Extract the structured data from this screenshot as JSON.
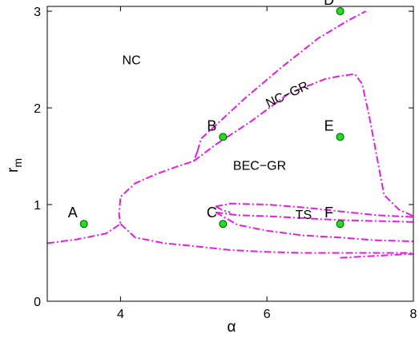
{
  "chart_data": {
    "type": "scatter",
    "xlabel": "α",
    "ylabel": "r",
    "ylabel_sub": "m",
    "xlim": [
      3,
      8
    ],
    "ylim": [
      0,
      3.05
    ],
    "xticks": [
      {
        "value": 4,
        "label": "4"
      },
      {
        "value": 6,
        "label": "6"
      },
      {
        "value": 8,
        "label": "8"
      }
    ],
    "yticks": [
      {
        "value": 0,
        "label": "0"
      },
      {
        "value": 1,
        "label": "1"
      },
      {
        "value": 2,
        "label": "2"
      },
      {
        "value": 3,
        "label": "3"
      }
    ],
    "grid": false,
    "colors": {
      "boundary": "#e31ee3",
      "marker_fill": "#22dd22",
      "marker_edge": "#005500",
      "axis": "#000000"
    },
    "points": [
      {
        "label": "A",
        "x": 3.5,
        "y": 0.8
      },
      {
        "label": "B",
        "x": 5.4,
        "y": 1.7
      },
      {
        "label": "C",
        "x": 5.4,
        "y": 0.8
      },
      {
        "label": "D",
        "x": 7.0,
        "y": 3.0
      },
      {
        "label": "E",
        "x": 7.0,
        "y": 1.7
      },
      {
        "label": "F",
        "x": 7.0,
        "y": 0.8
      }
    ],
    "regions": [
      {
        "label": "NC",
        "x": 4.15,
        "y": 2.45
      },
      {
        "label": "NC−GR",
        "x": 6.3,
        "y": 2.1,
        "rotate": -25
      },
      {
        "label": "BEC−GR",
        "x": 5.9,
        "y": 1.36
      },
      {
        "label": "TS",
        "x": 6.5,
        "y": 0.85
      }
    ],
    "boundaries": [
      {
        "name": "nc-ncgr",
        "x": [
          5.05,
          5.1,
          5.3,
          5.7,
          6.2,
          6.7,
          7.1,
          7.35
        ],
        "y": [
          1.55,
          1.68,
          1.82,
          2.1,
          2.42,
          2.72,
          2.9,
          3.0
        ]
      },
      {
        "name": "ncgr-becgr",
        "x": [
          5.0,
          5.3,
          5.8,
          6.3,
          6.8,
          7.0,
          7.2,
          7.3,
          7.4,
          7.6,
          7.8,
          8.0
        ],
        "y": [
          1.45,
          1.62,
          1.87,
          2.15,
          2.3,
          2.33,
          2.35,
          2.25,
          1.9,
          1.1,
          0.95,
          0.88
        ]
      },
      {
        "name": "outer-nc-becgr",
        "x": [
          3.0,
          3.4,
          3.8,
          4.0,
          3.98,
          4.0,
          4.2,
          4.5,
          4.8,
          5.0,
          5.05
        ],
        "y": [
          0.6,
          0.64,
          0.7,
          0.8,
          0.9,
          1.08,
          1.22,
          1.32,
          1.4,
          1.45,
          1.55
        ]
      },
      {
        "name": "lower-outer",
        "x": [
          4.0,
          4.2,
          4.6,
          5.0,
          5.5,
          6.0,
          6.5,
          7.0,
          7.5,
          8.0
        ],
        "y": [
          0.8,
          0.66,
          0.6,
          0.57,
          0.53,
          0.51,
          0.5,
          0.5,
          0.5,
          0.5
        ]
      },
      {
        "name": "ts-upper",
        "x": [
          5.3,
          5.5,
          6.0,
          6.5,
          7.0,
          7.5,
          8.0
        ],
        "y": [
          0.98,
          1.01,
          1.0,
          0.97,
          0.93,
          0.89,
          0.87
        ]
      },
      {
        "name": "ts-left",
        "x": [
          5.3,
          5.4,
          5.5
        ],
        "y": [
          0.98,
          0.94,
          0.92
        ]
      },
      {
        "name": "ts-middle",
        "x": [
          5.3,
          5.6,
          6.0,
          6.5,
          7.0,
          7.5,
          8.0
        ],
        "y": [
          0.92,
          0.89,
          0.88,
          0.86,
          0.84,
          0.83,
          0.82
        ]
      },
      {
        "name": "ts-lower",
        "x": [
          5.3,
          5.6,
          6.0,
          6.5,
          7.0,
          7.5,
          8.0
        ],
        "y": [
          0.92,
          0.79,
          0.73,
          0.68,
          0.66,
          0.63,
          0.62
        ]
      },
      {
        "name": "ts-bottom",
        "x": [
          7.0,
          7.5,
          8.0
        ],
        "y": [
          0.45,
          0.47,
          0.49
        ]
      }
    ]
  }
}
